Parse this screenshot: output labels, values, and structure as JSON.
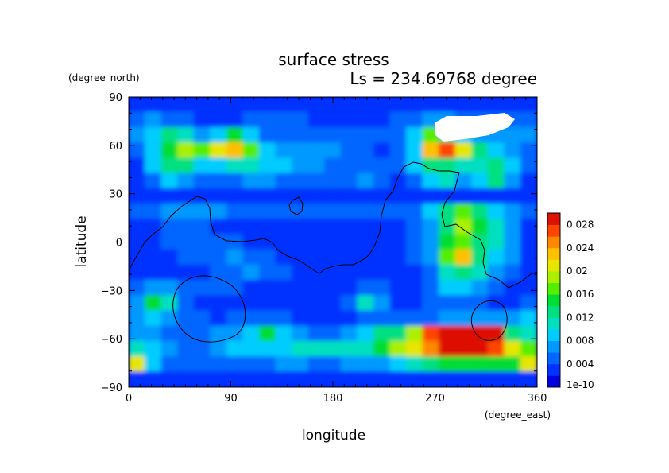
{
  "chart_data": {
    "type": "heatmap",
    "title": "surface stress",
    "subtitle": "Ls = 234.69768 degree",
    "xlabel": "longitude",
    "ylabel": "latitude",
    "x_unit": "(degree_east)",
    "y_unit": "(degree_north)",
    "xlim": [
      0,
      360
    ],
    "ylim": [
      -90,
      90
    ],
    "x_ticks": [
      0,
      90,
      180,
      270,
      360
    ],
    "y_ticks": [
      -90,
      -60,
      -30,
      0,
      30,
      60,
      90
    ],
    "x_tick_labels": [
      "0",
      "90",
      "180",
      "270",
      "360"
    ],
    "y_tick_labels": [
      "−90",
      "−60",
      "−30",
      "0",
      "30",
      "60",
      "90"
    ],
    "colorbar": {
      "min": 0,
      "max": 0.03,
      "levels": 15,
      "tick_labels": [
        "1e-10",
        "0.004",
        "0.008",
        "0.012",
        "0.016",
        "0.02",
        "0.024",
        "0.028"
      ],
      "tick_values": [
        0,
        0.004,
        0.008,
        0.012,
        0.016,
        0.02,
        0.024,
        0.028
      ],
      "colors": [
        "#0000e0",
        "#0033ff",
        "#0066ff",
        "#0099ff",
        "#00ccff",
        "#00e0c0",
        "#00e080",
        "#00dd33",
        "#55ee00",
        "#aaf000",
        "#e6e600",
        "#ffc000",
        "#ff8800",
        "#ff4400",
        "#dd1100"
      ]
    },
    "grid": false,
    "values": [
      [
        0.0025,
        0.0025,
        0.0025,
        0.0025,
        0.0025,
        0.0025,
        0.0025,
        0.0025,
        0.0025,
        0.0025,
        0.0025,
        0.0025,
        0.0025,
        0.0025,
        0.0025,
        0.0025,
        0.0025,
        0.0025,
        0.0025,
        0.0025,
        0.0025,
        0.0025,
        0.0025,
        0.0025,
        0.0025
      ],
      [
        0.005,
        0.006,
        0.005,
        0.004,
        0.003,
        0.003,
        0.003,
        0.004,
        0.004,
        0.004,
        0.004,
        0.003,
        0.003,
        0.003,
        0.003,
        0.003,
        0.004,
        0.005,
        0.006,
        0.006,
        0.005,
        0.004,
        0.004,
        0.004,
        0.005
      ],
      [
        0.007,
        0.008,
        0.012,
        0.01,
        0.006,
        0.009,
        0.014,
        0.008,
        0.005,
        0.005,
        0.004,
        0.004,
        0.004,
        0.005,
        0.005,
        0.004,
        0.005,
        0.008,
        0.017,
        0.013,
        0.008,
        0.006,
        0.006,
        0.006,
        0.006
      ],
      [
        0.004,
        0.008,
        0.014,
        0.018,
        0.016,
        0.02,
        0.022,
        0.016,
        0.009,
        0.006,
        0.006,
        0.006,
        0.006,
        0.005,
        0.004,
        0.003,
        0.005,
        0.009,
        0.022,
        0.026,
        0.02,
        0.012,
        0.008,
        0.006,
        0.005
      ],
      [
        0.003,
        0.008,
        0.013,
        0.012,
        0.008,
        0.009,
        0.01,
        0.01,
        0.009,
        0.008,
        0.007,
        0.006,
        0.005,
        0.005,
        0.004,
        0.004,
        0.005,
        0.009,
        0.012,
        0.012,
        0.01,
        0.01,
        0.013,
        0.008,
        0.004
      ],
      [
        0.002,
        0.005,
        0.008,
        0.007,
        0.004,
        0.004,
        0.004,
        0.006,
        0.006,
        0.005,
        0.004,
        0.004,
        0.004,
        0.005,
        0.006,
        0.004,
        0.003,
        0.004,
        0.008,
        0.01,
        0.006,
        0.008,
        0.012,
        0.007,
        0.003
      ],
      [
        0.002,
        0.002,
        0.003,
        0.003,
        0.003,
        0.003,
        0.003,
        0.003,
        0.003,
        0.003,
        0.003,
        0.003,
        0.003,
        0.003,
        0.003,
        0.003,
        0.003,
        0.003,
        0.003,
        0.003,
        0.003,
        0.003,
        0.003,
        0.003,
        0.002
      ],
      [
        0.004,
        0.005,
        0.006,
        0.007,
        0.006,
        0.006,
        0.005,
        0.005,
        0.004,
        0.004,
        0.004,
        0.004,
        0.004,
        0.004,
        0.004,
        0.004,
        0.004,
        0.005,
        0.008,
        0.013,
        0.016,
        0.012,
        0.008,
        0.006,
        0.004
      ],
      [
        0.002,
        0.003,
        0.004,
        0.004,
        0.004,
        0.003,
        0.003,
        0.003,
        0.003,
        0.002,
        0.002,
        0.002,
        0.002,
        0.002,
        0.003,
        0.003,
        0.003,
        0.004,
        0.006,
        0.012,
        0.018,
        0.015,
        0.011,
        0.006,
        0.003
      ],
      [
        0.002,
        0.003,
        0.004,
        0.005,
        0.004,
        0.004,
        0.004,
        0.003,
        0.003,
        0.003,
        0.002,
        0.002,
        0.002,
        0.002,
        0.002,
        0.002,
        0.003,
        0.004,
        0.006,
        0.014,
        0.017,
        0.012,
        0.01,
        0.007,
        0.003
      ],
      [
        0.002,
        0.003,
        0.003,
        0.004,
        0.004,
        0.004,
        0.006,
        0.005,
        0.004,
        0.003,
        0.003,
        0.002,
        0.002,
        0.002,
        0.002,
        0.002,
        0.002,
        0.004,
        0.006,
        0.017,
        0.023,
        0.012,
        0.008,
        0.006,
        0.003
      ],
      [
        0.002,
        0.003,
        0.003,
        0.003,
        0.003,
        0.004,
        0.005,
        0.006,
        0.005,
        0.004,
        0.003,
        0.002,
        0.002,
        0.002,
        0.002,
        0.002,
        0.002,
        0.003,
        0.005,
        0.011,
        0.013,
        0.01,
        0.006,
        0.004,
        0.002
      ],
      [
        0.004,
        0.007,
        0.006,
        0.005,
        0.004,
        0.004,
        0.004,
        0.003,
        0.003,
        0.003,
        0.003,
        0.003,
        0.003,
        0.003,
        0.004,
        0.005,
        0.003,
        0.003,
        0.005,
        0.009,
        0.008,
        0.006,
        0.004,
        0.003,
        0.003
      ],
      [
        0.006,
        0.014,
        0.01,
        0.005,
        0.003,
        0.003,
        0.003,
        0.003,
        0.003,
        0.003,
        0.003,
        0.003,
        0.003,
        0.004,
        0.011,
        0.006,
        0.003,
        0.003,
        0.004,
        0.005,
        0.004,
        0.004,
        0.003,
        0.003,
        0.004
      ],
      [
        0.007,
        0.008,
        0.006,
        0.005,
        0.004,
        0.003,
        0.004,
        0.005,
        0.005,
        0.004,
        0.003,
        0.003,
        0.003,
        0.003,
        0.004,
        0.005,
        0.004,
        0.004,
        0.005,
        0.006,
        0.006,
        0.006,
        0.006,
        0.007,
        0.008
      ],
      [
        0.007,
        0.006,
        0.005,
        0.004,
        0.004,
        0.006,
        0.007,
        0.009,
        0.015,
        0.008,
        0.006,
        0.005,
        0.005,
        0.006,
        0.008,
        0.012,
        0.013,
        0.018,
        0.026,
        0.03,
        0.03,
        0.03,
        0.03,
        0.012,
        0.01
      ],
      [
        0.011,
        0.008,
        0.006,
        0.004,
        0.005,
        0.007,
        0.008,
        0.008,
        0.009,
        0.009,
        0.01,
        0.01,
        0.01,
        0.01,
        0.011,
        0.015,
        0.018,
        0.021,
        0.024,
        0.03,
        0.03,
        0.03,
        0.026,
        0.02,
        0.017
      ],
      [
        0.02,
        0.009,
        0.005,
        0.004,
        0.004,
        0.004,
        0.004,
        0.004,
        0.005,
        0.006,
        0.006,
        0.005,
        0.005,
        0.006,
        0.006,
        0.006,
        0.008,
        0.01,
        0.012,
        0.014,
        0.014,
        0.014,
        0.014,
        0.014,
        0.02
      ],
      [
        0.003,
        0.003,
        0.003,
        0.003,
        0.003,
        0.003,
        0.003,
        0.003,
        0.003,
        0.003,
        0.003,
        0.003,
        0.003,
        0.003,
        0.003,
        0.003,
        0.003,
        0.003,
        0.003,
        0.003,
        0.003,
        0.003,
        0.003,
        0.003,
        0.003
      ]
    ]
  }
}
